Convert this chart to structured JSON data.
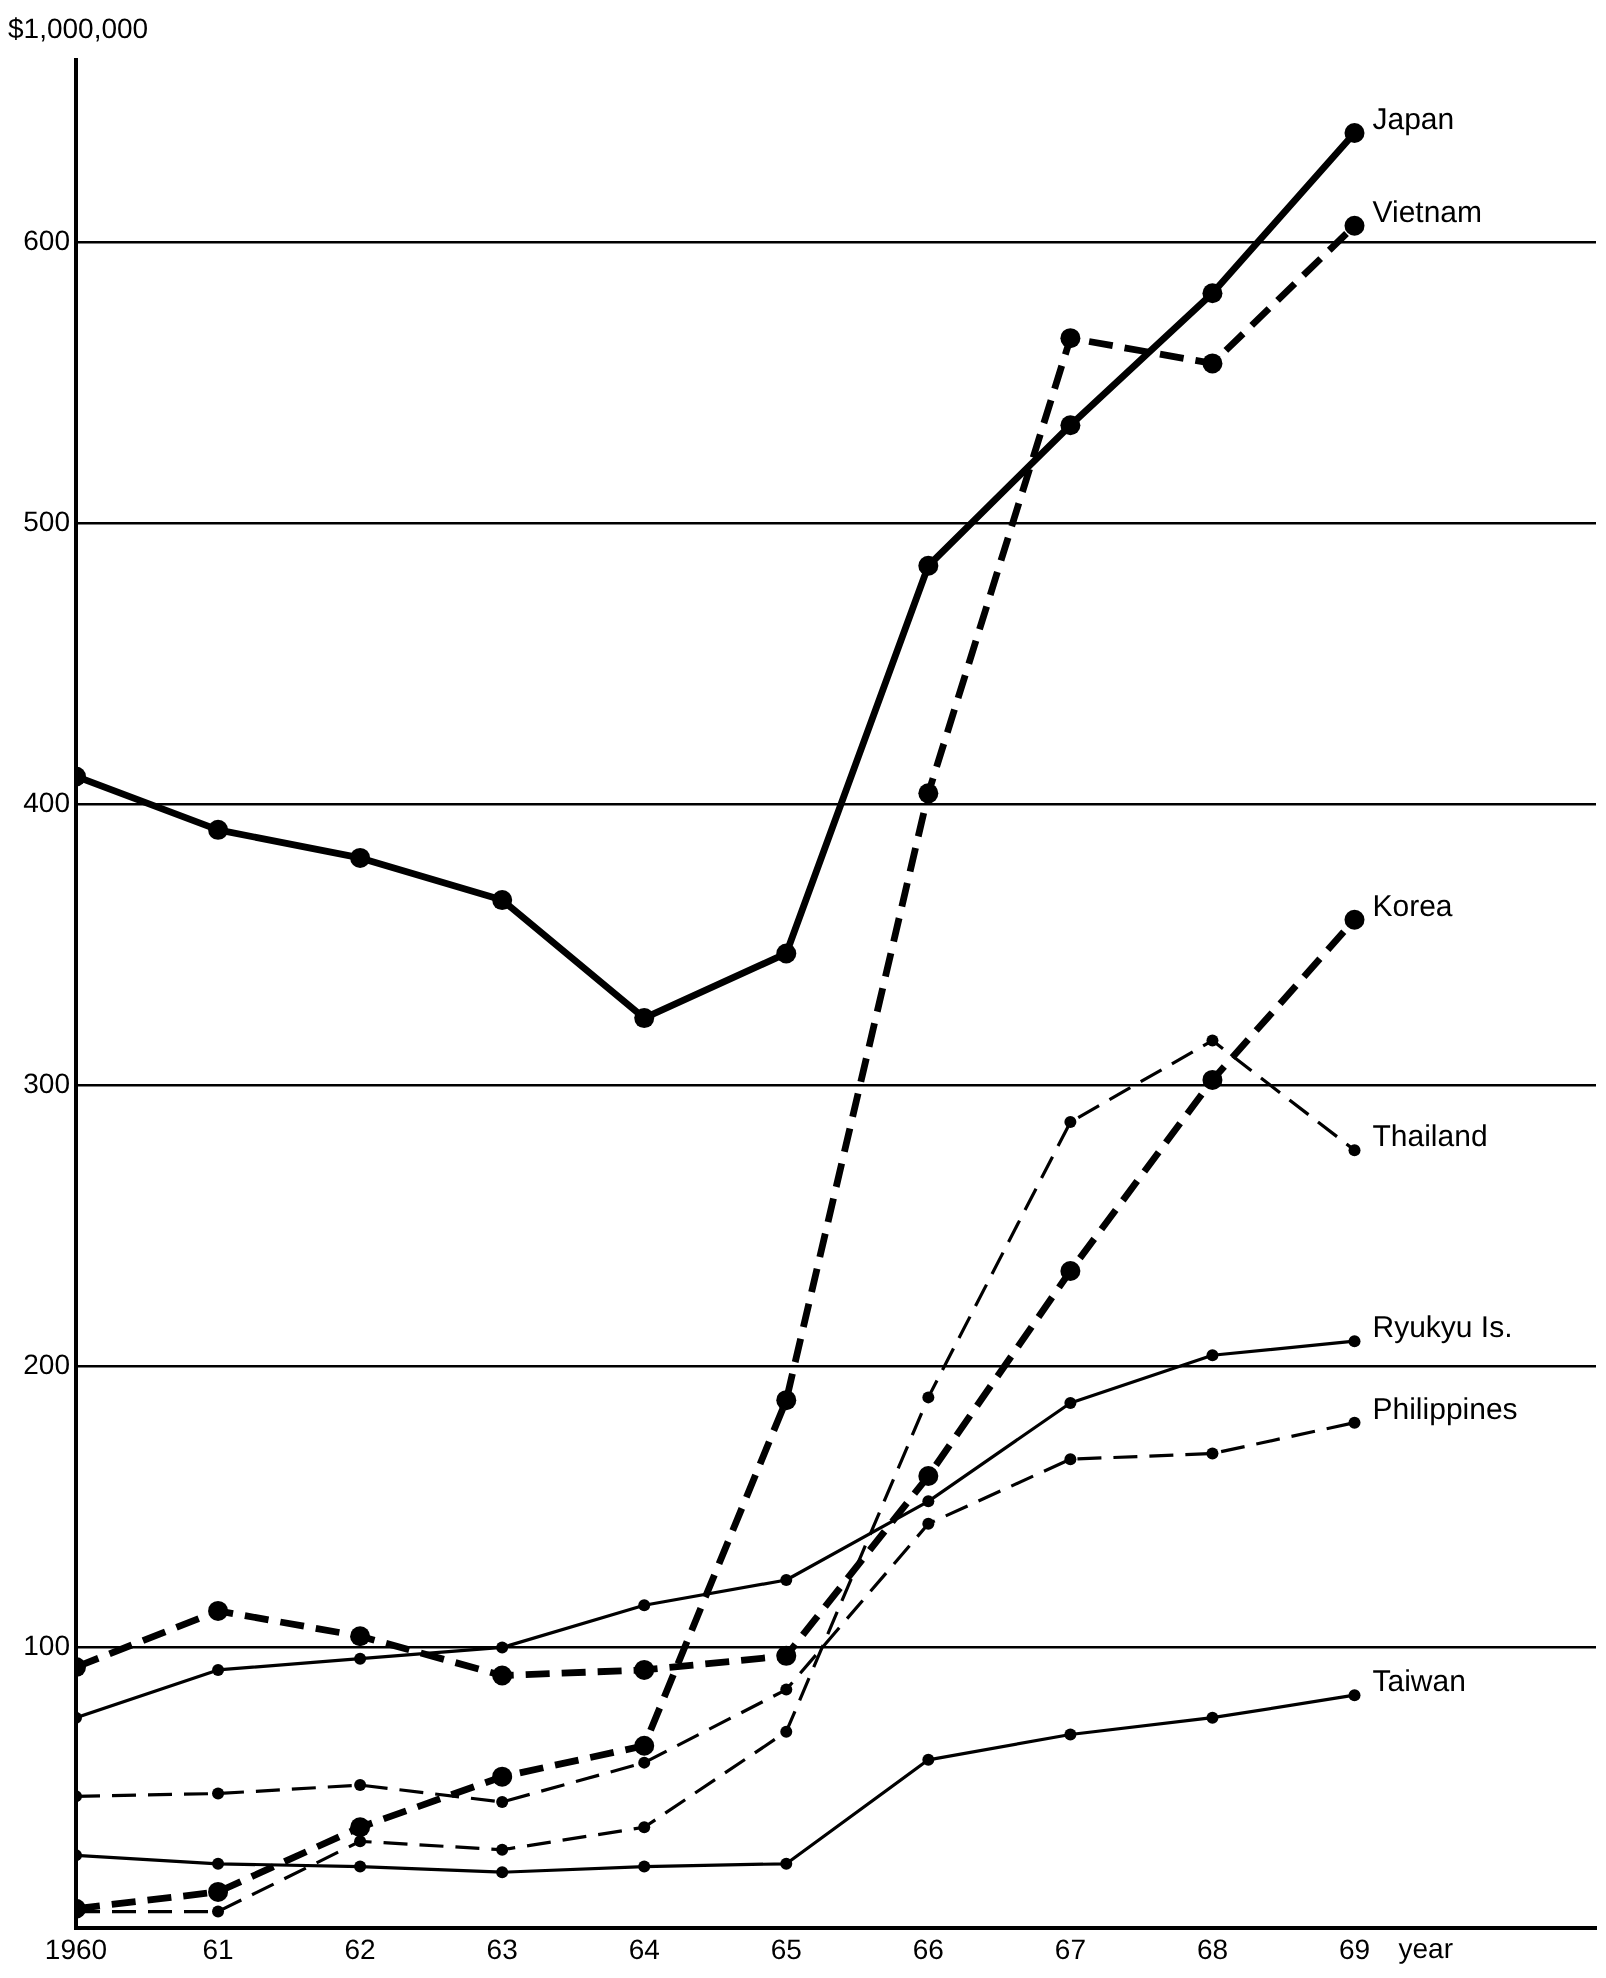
{
  "chart_data": {
    "type": "line",
    "ylabel": "$1,000,000",
    "xlabel": "year",
    "x": [
      1960,
      1961,
      1962,
      1963,
      1964,
      1965,
      1966,
      1967,
      1968,
      1969
    ],
    "xlim": [
      1960,
      1970.7
    ],
    "xticks": [
      {
        "value": 1960,
        "label": "1960"
      },
      {
        "value": 1961,
        "label": "61"
      },
      {
        "value": 1962,
        "label": "62"
      },
      {
        "value": 1963,
        "label": "63"
      },
      {
        "value": 1964,
        "label": "64"
      },
      {
        "value": 1965,
        "label": "65"
      },
      {
        "value": 1966,
        "label": "66"
      },
      {
        "value": 1967,
        "label": "67"
      },
      {
        "value": 1968,
        "label": "68"
      },
      {
        "value": 1969,
        "label": "69"
      }
    ],
    "ylim": [
      0,
      665
    ],
    "yticks": [
      100,
      200,
      300,
      400,
      500,
      600
    ],
    "grid": "y",
    "legend": false,
    "marker": "circle",
    "series": [
      {
        "name": "Japan",
        "color": "#000000",
        "line_style": "solid",
        "values": [
          410,
          391,
          381,
          366,
          324,
          347,
          485,
          535,
          582,
          639
        ]
      },
      {
        "name": "Vietnam",
        "color": "#000000",
        "line_style": "dashed",
        "values": [
          7,
          13,
          36,
          54,
          65,
          188,
          404,
          566,
          557,
          606
        ]
      },
      {
        "name": "Korea",
        "color": "#000000",
        "line_style": "dashed",
        "values": [
          93,
          113,
          104,
          90,
          92,
          97,
          161,
          234,
          302,
          359
        ]
      },
      {
        "name": "Thailand",
        "color": "#000000",
        "line_style": "dashed",
        "values": [
          6,
          6,
          31,
          28,
          36,
          70,
          189,
          287,
          316,
          277
        ]
      },
      {
        "name": "Ryukyu Is.",
        "color": "#000000",
        "line_style": "solid",
        "values": [
          75,
          92,
          96,
          100,
          115,
          124,
          152,
          187,
          204,
          209
        ]
      },
      {
        "name": "Philippines",
        "color": "#000000",
        "line_style": "dashed",
        "values": [
          47,
          48,
          51,
          45,
          59,
          85,
          144,
          167,
          169,
          180
        ]
      },
      {
        "name": "Taiwan",
        "color": "#000000",
        "line_style": "solid",
        "values": [
          26,
          23,
          22,
          20,
          22,
          23,
          60,
          69,
          75,
          83
        ]
      }
    ]
  }
}
